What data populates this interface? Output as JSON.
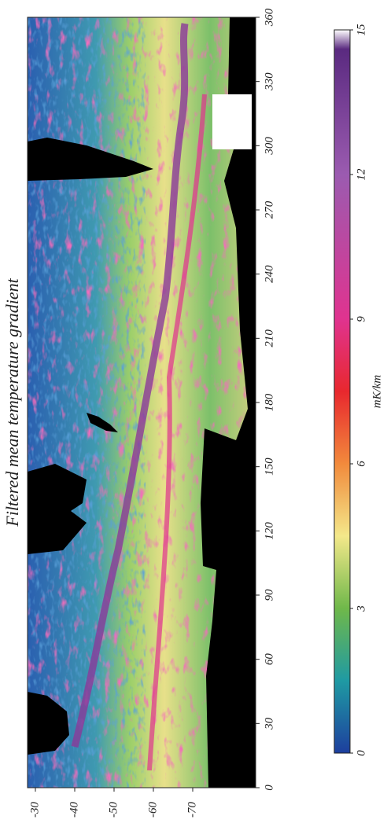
{
  "chart_data": {
    "type": "heatmap",
    "title": "Filtered mean temperature gradient",
    "xlim": [
      0,
      360
    ],
    "xticks": [
      0,
      30,
      60,
      90,
      120,
      150,
      180,
      210,
      240,
      270,
      300,
      330,
      360
    ],
    "ylim": [
      -28,
      -86
    ],
    "yticks": [
      -30,
      -40,
      -50,
      -60,
      -70
    ],
    "colorbar": {
      "label": "mK/km",
      "lim": [
        0,
        15
      ],
      "ticks": [
        0,
        3,
        6,
        9,
        12,
        15
      ],
      "stops": [
        0,
        1.5,
        3,
        4.5,
        6,
        7.5,
        9,
        12,
        14.6,
        15
      ],
      "colors": [
        "#1d3f9e",
        "#1f9aa3",
        "#6fb84a",
        "#f3e88a",
        "#f28a3c",
        "#e8282e",
        "#e0338f",
        "#9b5bb0",
        "#5a2a80",
        "#ffffff"
      ]
    }
  }
}
